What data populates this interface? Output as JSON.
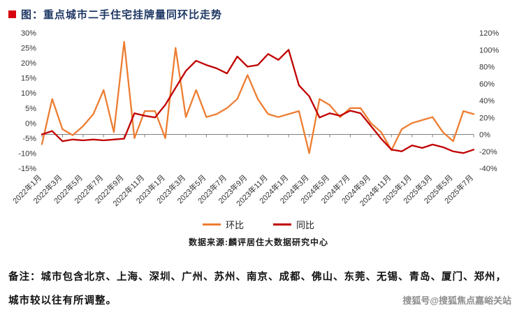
{
  "page": {
    "title": "图：重点城市二手住宅挂牌量同环比走势",
    "source": "数据来源:麟评居住大数据研究中心",
    "note_line1": "备注：城市包含北京、上海、深圳、广州、苏州、南京、成都、佛山、东莞、无锡、青岛、厦门、郑州，",
    "note_line2": "城市较以往有所调整。",
    "watermark": "搜狐号@搜狐焦点嘉峪关站"
  },
  "colors": {
    "mom_line": "#ED7D31",
    "yoy_line": "#C00000",
    "title_text": "#1F3864",
    "title_bullet": "#D7000F",
    "axis_text": "#333333",
    "axis_line": "#808080",
    "watermark_text": "#8E8E8E"
  },
  "chart_data": {
    "type": "line",
    "title": "重点城市二手住宅挂牌量同环比走势",
    "grid": false,
    "legend_position": "bottom",
    "x": [
      "2022年1月",
      "2022年2月",
      "2022年3月",
      "2022年4月",
      "2022年5月",
      "2022年6月",
      "2022年7月",
      "2022年8月",
      "2022年9月",
      "2022年10月",
      "2022年11月",
      "2022年12月",
      "2023年1月",
      "2023年2月",
      "2023年3月",
      "2023年4月",
      "2023年5月",
      "2023年6月",
      "2023年7月",
      "2023年8月",
      "2023年9月",
      "2023年10月",
      "2023年11月",
      "2023年12月",
      "2024年1月",
      "2024年2月",
      "2024年3月",
      "2024年4月",
      "2024年5月",
      "2024年6月",
      "2024年7月",
      "2024年8月",
      "2024年9月",
      "2024年10月",
      "2024年11月",
      "2024年12月",
      "2025年1月",
      "2025年2月",
      "2025年3月",
      "2025年4月",
      "2025年5月",
      "2025年6月",
      "2025年7月"
    ],
    "x_tick_labels": [
      "2022年1月",
      "2022年3月",
      "2022年5月",
      "2022年7月",
      "2022年9月",
      "2022年11月",
      "2023年1月",
      "2023年3月",
      "2023年5月",
      "2023年7月",
      "2023年9月",
      "2023年11月",
      "2024年1月",
      "2024年3月",
      "2024年5月",
      "2024年7月",
      "2024年9月",
      "2024年11月",
      "2025年1月",
      "2025年3月",
      "2025年5月",
      "2025年7月"
    ],
    "left_axis": {
      "min": -15,
      "max": 30,
      "step": 5,
      "ticks": [
        "30%",
        "25%",
        "20%",
        "15%",
        "10%",
        "5%",
        "0%",
        "-5%",
        "-10%",
        "-15%"
      ]
    },
    "right_axis": {
      "min": -40,
      "max": 120,
      "step": 20,
      "ticks": [
        "120%",
        "100%",
        "80%",
        "60%",
        "40%",
        "20%",
        "0%",
        "-20%",
        "-40%"
      ]
    },
    "series": [
      {
        "name": "环比",
        "axis": "left",
        "color": "#ED7D31",
        "values": [
          -7,
          8,
          -2,
          -4,
          -1,
          3,
          11,
          -3,
          27,
          -5,
          4,
          4,
          -5,
          25,
          2,
          11,
          2,
          3,
          5,
          8,
          16,
          8,
          3,
          2,
          3,
          4,
          -10,
          8,
          6,
          2,
          5,
          5,
          0,
          -3,
          -9,
          -2,
          0,
          1,
          2,
          -3,
          -6,
          4,
          3
        ]
      },
      {
        "name": "同比",
        "axis": "right",
        "color": "#C00000",
        "values": [
          0,
          4,
          -8,
          -6,
          -7,
          -6,
          -7,
          -6,
          -5,
          25,
          22,
          20,
          35,
          55,
          75,
          87,
          82,
          78,
          72,
          92,
          80,
          82,
          95,
          88,
          100,
          58,
          45,
          20,
          25,
          22,
          28,
          25,
          10,
          -5,
          -18,
          -20,
          -13,
          -16,
          -12,
          -15,
          -20,
          -22,
          -18
        ]
      }
    ]
  }
}
